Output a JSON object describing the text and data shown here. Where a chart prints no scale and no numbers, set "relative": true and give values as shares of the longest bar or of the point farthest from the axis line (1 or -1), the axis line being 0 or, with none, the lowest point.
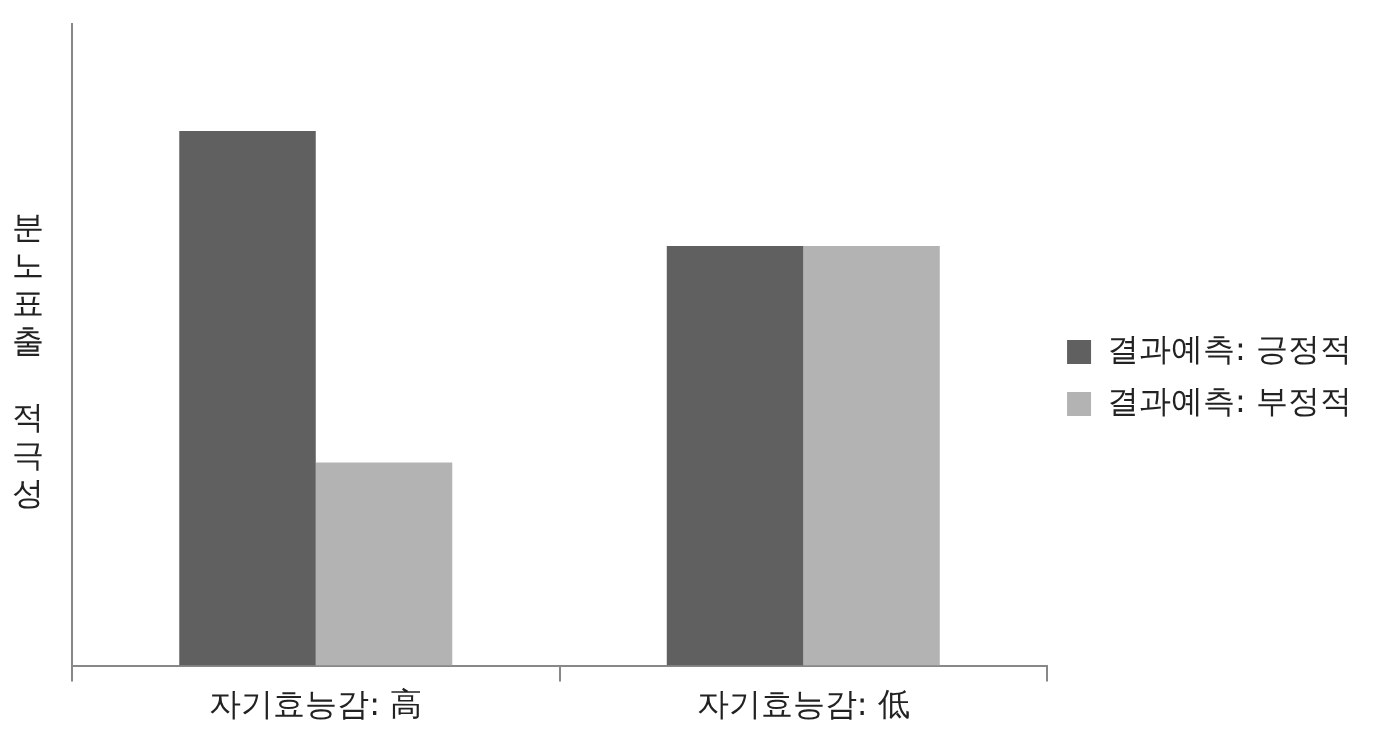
{
  "chart_data": {
    "type": "bar",
    "ylabel": "분노표출 적극성",
    "categories": [
      "자기효능감: 高",
      "자기효능감: 低"
    ],
    "relative": true,
    "legend": "right",
    "series": [
      {
        "name": "결과예측: 긍정적",
        "color": "#606060",
        "values": [
          1,
          0.785
        ]
      },
      {
        "name": "결과예측: 부정적",
        "color": "#b3b3b3",
        "values": [
          0.38,
          0.785
        ]
      }
    ]
  }
}
